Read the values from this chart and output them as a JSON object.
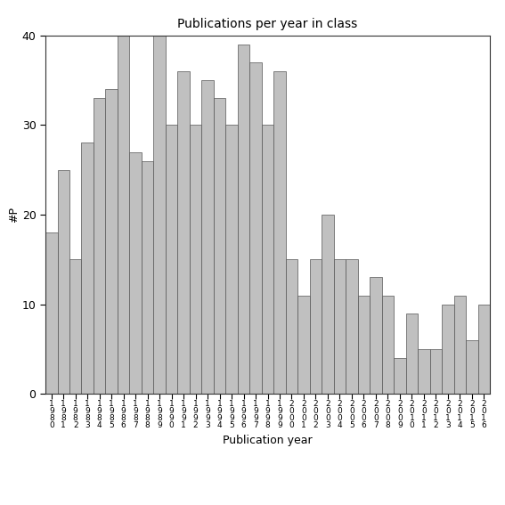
{
  "title": "Publications per year in class",
  "xlabel": "Publication year",
  "ylabel": "#P",
  "bar_color": "#c0c0c0",
  "bar_edgecolor": "#555555",
  "years": [
    1980,
    1981,
    1982,
    1983,
    1984,
    1985,
    1986,
    1987,
    1988,
    1989,
    1990,
    1991,
    1992,
    1993,
    1994,
    1995,
    1996,
    1997,
    1998,
    1999,
    2000,
    2001,
    2002,
    2003,
    2004,
    2005,
    2006,
    2007,
    2008,
    2009,
    2010,
    2011,
    2012,
    2013,
    2014,
    2015,
    2016
  ],
  "values": [
    18,
    25,
    15,
    28,
    33,
    34,
    40,
    27,
    26,
    40,
    30,
    36,
    30,
    35,
    33,
    30,
    39,
    37,
    30,
    36,
    15,
    11,
    15,
    20,
    15,
    15,
    11,
    13,
    11,
    4,
    9,
    5,
    5,
    10,
    11,
    6,
    10
  ],
  "ylim": [
    0,
    40
  ],
  "yticks": [
    0,
    10,
    20,
    30,
    40
  ],
  "figsize": [
    5.67,
    5.67
  ],
  "dpi": 100
}
